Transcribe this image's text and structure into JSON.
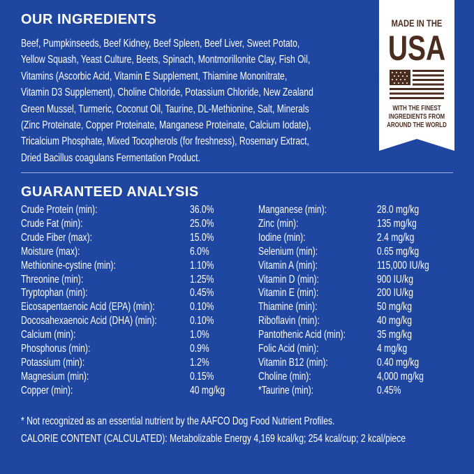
{
  "ingredients": {
    "title": "OUR INGREDIENTS",
    "lines": [
      "Beef, Pumpkinseeds, Beef Kidney, Beef Spleen, Beef Liver, Sweet Potato,",
      "Yellow Squash, Yeast Culture, Beets, Spinach, Montmorillonite Clay, Fish Oil,",
      "Vitamins (Ascorbic Acid, Vitamin E Supplement, Thiamine Mononitrate,",
      "Vitamin D3 Supplement), Choline Chloride, Potassium Chloride, New Zealand",
      "Green Mussel, Turmeric, Coconut Oil, Taurine, DL-Methionine, Salt, Minerals",
      "(Zinc Proteinate, Copper Proteinate, Manganese Proteinate, Calcium Iodate),",
      "Tricalcium Phosphate, Mixed Tocopherols (for freshness), Rosemary Extract,",
      "Dried Bacillus coagulans Fermentation Product."
    ]
  },
  "badge": {
    "line1": "MADE IN THE",
    "line2": "USA",
    "tagline": [
      "WITH THE FINEST",
      "INGREDIENTS FROM",
      "AROUND THE WORLD"
    ],
    "icon": "american-flag-icon",
    "color": "#4b2d20"
  },
  "analysis": {
    "title": "GUARANTEED ANALYSIS",
    "left": [
      {
        "label": "Crude Protein (min):",
        "value": "36.0%"
      },
      {
        "label": "Crude Fat (min):",
        "value": "25.0%"
      },
      {
        "label": "Crude Fiber (max):",
        "value": "15.0%"
      },
      {
        "label": "Moisture (max):",
        "value": "6.0%"
      },
      {
        "label": "Methionine-cystine (min):",
        "value": "1.10%"
      },
      {
        "label": "Threonine (min):",
        "value": "1.25%"
      },
      {
        "label": "Tryptophan (min):",
        "value": "0.45%"
      },
      {
        "label": "Eicosapentaenoic Acid (EPA) (min):",
        "value": "0.10%"
      },
      {
        "label": "Docosahexaenoic Acid (DHA) (min):",
        "value": "0.10%"
      },
      {
        "label": "Calcium (min):",
        "value": "1.0%"
      },
      {
        "label": "Phosphorus (min):",
        "value": "0.9%"
      },
      {
        "label": "Potassium (min):",
        "value": "1.2%"
      },
      {
        "label": "Magnesium (min):",
        "value": "0.15%"
      },
      {
        "label": "Copper (min):",
        "value": "40 mg/kg"
      }
    ],
    "right": [
      {
        "label": "Manganese (min):",
        "value": "28.0 mg/kg"
      },
      {
        "label": "Zinc (min):",
        "value": "135 mg/kg"
      },
      {
        "label": "Iodine (min):",
        "value": "2.4 mg/kg"
      },
      {
        "label": "Selenium  (min):",
        "value": "0.65 mg/kg"
      },
      {
        "label": "Vitamin A (min):",
        "value": "115,000 IU/kg"
      },
      {
        "label": "Vitamin D (min):",
        "value": "900 IU/kg"
      },
      {
        "label": "Vitamin E (min):",
        "value": "200 IU/kg"
      },
      {
        "label": "Thiamine (min):",
        "value": "50 mg/kg"
      },
      {
        "label": "Riboflavin (min):",
        "value": "40 mg/kg"
      },
      {
        "label": "Pantothenic Acid (min):",
        "value": "35 mg/kg"
      },
      {
        "label": "Folic Acid (min):",
        "value": "4 mg/kg"
      },
      {
        "label": "Vitamin B12 (min):",
        "value": "0.40 mg/kg"
      },
      {
        "label": "Choline (min):",
        "value": "4,000 mg/kg"
      },
      {
        "label": "*Taurine (min):",
        "value": "0.45%"
      }
    ],
    "footnote": "* Not recognized as an essential nutrient by the AAFCO Dog Food Nutrient Profiles.",
    "calories": "CALORIE CONTENT (CALCULATED): Metabolizable Energy 4,169 kcal/kg; 254 kcal/cup; 2 kcal/piece"
  },
  "colors": {
    "background": "#1f46a0",
    "text": "#ffffff"
  }
}
